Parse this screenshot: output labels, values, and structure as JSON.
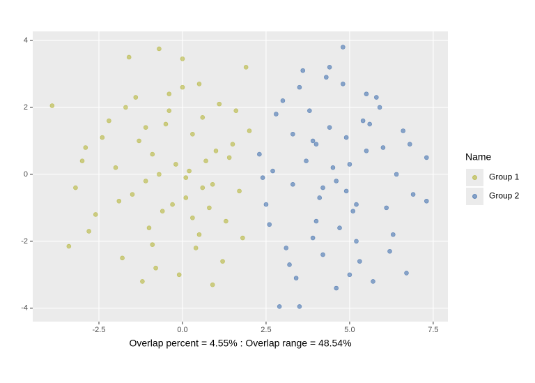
{
  "chart_data": {
    "type": "scatter",
    "x_label": "Overlap percent = 4.55% : Overlap range = 48.54%",
    "legend_title": "Name",
    "legend_position": "right",
    "grid": true,
    "xlim": [
      -4.48,
      7.94
    ],
    "ylim": [
      -4.4,
      4.27
    ],
    "xticks": [
      -2.5,
      {
        "value": 0,
        "label": "0.0"
      },
      2.5,
      {
        "value": 5,
        "label": "5.0"
      },
      7.5
    ],
    "yticks": [
      4,
      2,
      0,
      -2,
      -4
    ],
    "series": [
      {
        "name": "Group 1",
        "color": "#a3a500",
        "x": [
          -3.9,
          -3.4,
          -1.6,
          -0.7,
          0.0,
          -2.9,
          -2.6,
          -3.2,
          -2.2,
          -1.8,
          -1.4,
          -1.1,
          -0.9,
          -0.6,
          -0.4,
          -0.2,
          0.1,
          0.3,
          0.5,
          0.7,
          0.9,
          1.1,
          1.3,
          1.5,
          1.7,
          1.9,
          -1.2,
          -0.8,
          -0.5,
          -0.3,
          0.0,
          0.2,
          0.4,
          0.6,
          0.8,
          1.0,
          -1.5,
          -2.0,
          -2.4,
          -1.0,
          -0.1,
          0.5,
          1.2,
          1.6,
          -0.7,
          -1.3,
          0.3,
          -2.8,
          -1.9,
          0.9,
          1.4,
          -0.4,
          -1.7,
          2.0,
          -0.9,
          0.1,
          -3.0,
          1.8,
          -1.1,
          0.6
        ],
        "y": [
          2.05,
          -2.15,
          3.5,
          3.75,
          3.45,
          0.8,
          -1.2,
          -0.4,
          1.6,
          -2.5,
          2.3,
          -0.2,
          0.6,
          -1.1,
          1.9,
          0.3,
          -0.7,
          1.2,
          -1.8,
          0.4,
          -0.3,
          2.1,
          -1.4,
          0.9,
          -0.5,
          3.2,
          -3.2,
          -2.8,
          1.5,
          -0.9,
          2.6,
          0.1,
          -2.2,
          1.7,
          -1.0,
          0.7,
          -0.6,
          0.2,
          1.1,
          -1.6,
          -3.0,
          2.7,
          -2.6,
          1.9,
          0.0,
          1.0,
          -1.3,
          -1.7,
          -0.8,
          -3.3,
          0.5,
          2.4,
          2.0,
          1.3,
          -2.1,
          -0.1,
          0.4,
          -1.9,
          1.4,
          -0.4
        ]
      },
      {
        "name": "Group 2",
        "color": "#0b4a9c",
        "x": [
          2.9,
          3.5,
          4.8,
          7.3,
          7.3,
          6.7,
          2.3,
          2.6,
          3.0,
          3.3,
          3.6,
          3.9,
          4.2,
          4.5,
          4.8,
          5.1,
          5.4,
          5.7,
          6.0,
          6.3,
          6.6,
          6.9,
          2.5,
          2.8,
          3.2,
          3.7,
          4.0,
          4.3,
          4.6,
          4.9,
          5.2,
          5.5,
          5.8,
          6.1,
          6.4,
          3.4,
          3.8,
          4.1,
          4.4,
          4.7,
          5.0,
          5.3,
          5.6,
          2.7,
          3.1,
          4.0,
          4.6,
          5.9,
          6.2,
          3.5,
          4.2,
          5.0,
          5.5,
          6.8,
          2.4,
          3.9,
          4.4,
          5.2,
          3.3,
          4.9
        ],
        "y": [
          -3.95,
          -3.95,
          3.8,
          0.5,
          -0.8,
          -2.95,
          0.6,
          -1.5,
          2.2,
          -0.3,
          3.1,
          1.0,
          -2.4,
          0.2,
          2.7,
          -1.1,
          1.6,
          -3.2,
          0.8,
          -1.8,
          1.3,
          -0.6,
          -0.9,
          1.8,
          -2.7,
          0.4,
          -1.4,
          2.9,
          -0.2,
          1.1,
          -2.0,
          0.7,
          2.3,
          -1.0,
          0.0,
          -3.1,
          1.9,
          -0.7,
          3.2,
          -1.6,
          0.3,
          -2.6,
          1.5,
          0.1,
          -2.2,
          0.9,
          -3.4,
          2.0,
          -2.3,
          2.6,
          -0.4,
          -3.0,
          2.4,
          0.9,
          -0.1,
          -1.9,
          1.4,
          -0.9,
          1.2,
          -0.5
        ]
      }
    ]
  }
}
